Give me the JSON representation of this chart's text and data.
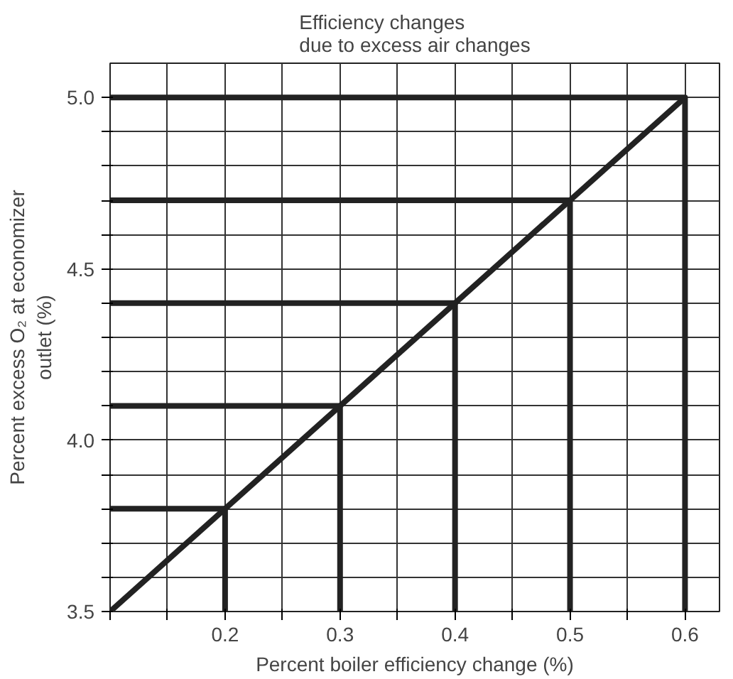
{
  "chart_data": {
    "type": "line",
    "title": "Efficiency changes\ndue to excess air changes",
    "xlabel": "Percent boiler efficiency change (%)",
    "ylabel": "Percent excess O₂ at economizer\noutlet (%)",
    "xlim": [
      0.1,
      0.63
    ],
    "ylim": [
      3.5,
      5.1
    ],
    "xticks": [
      {
        "value": 0.1,
        "label": null
      },
      {
        "value": 0.15,
        "label": null
      },
      0.2,
      {
        "value": 0.25,
        "label": null
      },
      0.3,
      {
        "value": 0.35,
        "label": null
      },
      0.4,
      {
        "value": 0.45,
        "label": null
      },
      0.5,
      {
        "value": 0.55,
        "label": null
      },
      0.6
    ],
    "yticks": [
      3.5,
      {
        "value": 3.6,
        "label": null
      },
      {
        "value": 3.7,
        "label": null
      },
      {
        "value": 3.8,
        "label": null
      },
      {
        "value": 3.9,
        "label": null
      },
      {
        "value": 4.0,
        "label": "4.0"
      },
      {
        "value": 4.1,
        "label": null
      },
      {
        "value": 4.2,
        "label": null
      },
      {
        "value": 4.3,
        "label": null
      },
      {
        "value": 4.4,
        "label": null
      },
      4.5,
      {
        "value": 4.6,
        "label": null
      },
      {
        "value": 4.7,
        "label": null
      },
      {
        "value": 4.8,
        "label": null
      },
      {
        "value": 4.9,
        "label": null
      },
      {
        "value": 5.0,
        "label": "5.0"
      }
    ],
    "grid": true,
    "line_style": "solid",
    "marker": "none",
    "series": [
      {
        "color": "#222222",
        "x": [
          0.1,
          0.6
        ],
        "values": [
          3.5,
          5.0
        ]
      },
      {
        "color": "#222222",
        "x": [
          0.1,
          0.2,
          0.2
        ],
        "values": [
          3.8,
          3.8,
          3.5
        ]
      },
      {
        "color": "#222222",
        "x": [
          0.1,
          0.3,
          0.3
        ],
        "values": [
          4.1,
          4.1,
          3.5
        ]
      },
      {
        "color": "#222222",
        "x": [
          0.1,
          0.4,
          0.4
        ],
        "values": [
          4.4,
          4.4,
          3.5
        ]
      },
      {
        "color": "#222222",
        "x": [
          0.1,
          0.5,
          0.5
        ],
        "values": [
          4.7,
          4.7,
          3.5
        ]
      },
      {
        "color": "#222222",
        "x": [
          0.1,
          0.6,
          0.6
        ],
        "values": [
          5.0,
          5.0,
          3.5
        ]
      }
    ]
  }
}
